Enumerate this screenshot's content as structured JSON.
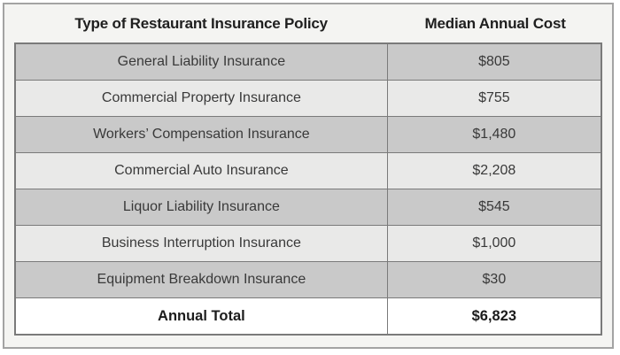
{
  "chart_data": {
    "type": "table",
    "columns": [
      "Type of Restaurant Insurance Policy",
      "Median Annual Cost"
    ],
    "categories": [
      "General Liability Insurance",
      "Commercial Property Insurance",
      "Workers’ Compensation Insurance",
      "Commercial Auto Insurance",
      "Liquor Liability Insurance",
      "Business Interruption Insurance",
      "Equipment Breakdown Insurance"
    ],
    "values": [
      805,
      755,
      1480,
      2208,
      545,
      1000,
      30
    ],
    "total_label": "Annual Total",
    "total_value": 6823,
    "legend_position": "none",
    "grid": true
  },
  "table": {
    "header": {
      "policy": "Type of Restaurant Insurance Policy",
      "cost": "Median Annual Cost"
    },
    "rows": [
      {
        "policy": "General Liability Insurance",
        "cost": "$805"
      },
      {
        "policy": "Commercial Property Insurance",
        "cost": "$755"
      },
      {
        "policy": "Workers’ Compensation Insurance",
        "cost": "$1,480"
      },
      {
        "policy": "Commercial Auto Insurance",
        "cost": "$2,208"
      },
      {
        "policy": "Liquor Liability Insurance",
        "cost": "$545"
      },
      {
        "policy": "Business Interruption Insurance",
        "cost": "$1,000"
      },
      {
        "policy": "Equipment Breakdown Insurance",
        "cost": "$30"
      }
    ],
    "total": {
      "policy": "Annual Total",
      "cost": "$6,823"
    }
  },
  "colors": {
    "row_gray": "#c9c9c9",
    "row_light": "#e9e9e8",
    "total_bg": "#ffffff",
    "table_border": "#7a7a7a",
    "frame_border": "#a3a3a3",
    "page_bg": "#f4f4f2",
    "header_text": "#1f1f1f",
    "body_text": "#393939"
  }
}
